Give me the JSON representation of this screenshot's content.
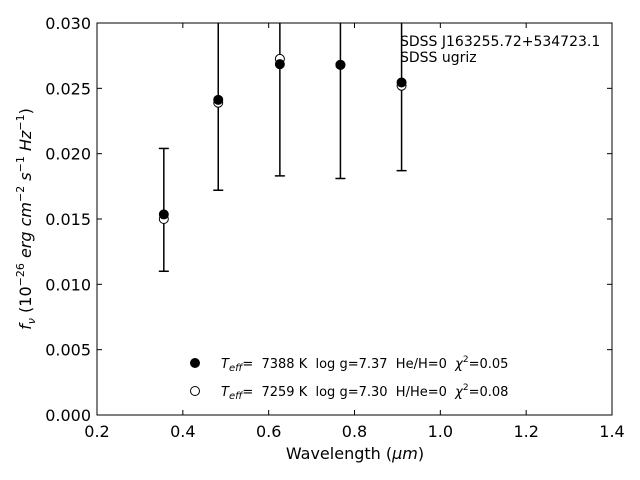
{
  "chart_data": {
    "type": "scatter",
    "annotation": [
      "SDSS J163255.72+534723.1",
      "SDSS ugriz"
    ],
    "xlabel": {
      "main": "Wavelength (",
      "unit": "μm",
      "close": ")"
    },
    "ylabel": {
      "prefix": "f",
      "sub": "ν",
      "rest": " (10",
      "exp": "−26",
      "units": " erg cm",
      "exp2": "−2",
      "units2": " s",
      "exp3": "−1",
      "units3": " Hz",
      "exp4": "−1",
      "close": ")"
    },
    "xlim": [
      0.2,
      1.4
    ],
    "ylim": [
      0.0,
      0.03
    ],
    "xticks": [
      "0.2",
      "0.4",
      "0.6",
      "0.8",
      "1.0",
      "1.2",
      "1.4"
    ],
    "yticks": [
      "0.000",
      "0.005",
      "0.010",
      "0.015",
      "0.020",
      "0.025",
      "0.030"
    ],
    "observed": {
      "x": [
        0.3557,
        0.4825,
        0.6261,
        0.7672,
        0.9097
      ],
      "y": [
        0.01535,
        0.02412,
        0.02685,
        0.0268,
        0.02545
      ],
      "yerr_low": [
        0.011,
        0.0172,
        0.0183,
        0.0181,
        0.0187
      ],
      "yerr_high": [
        0.0204,
        0.03,
        0.03,
        0.03,
        0.03
      ]
    },
    "series": [
      {
        "name": "T_eff= 7388 K log g=7.37 He/H=0 chi2=0.05",
        "marker": "filled-circle",
        "x": [
          0.3557,
          0.4825,
          0.6261,
          0.7672,
          0.9097
        ],
        "y": [
          0.01535,
          0.02412,
          0.02685,
          0.0268,
          0.02545
        ]
      },
      {
        "name": "T_eff= 7259 K log g=7.30 H/He=0 chi2=0.08",
        "marker": "open-circle",
        "x": [
          0.3557,
          0.4825,
          0.6261,
          0.7672,
          0.9097
        ],
        "y": [
          0.015,
          0.0239,
          0.02725,
          0.0268,
          0.0252
        ]
      }
    ],
    "legend": [
      {
        "marker": "filled-circle",
        "teff": "T",
        "teff_sub": "eff",
        "text": "=  7388 K  log g=7.37  He/H=0  ",
        "chi": "χ",
        "chi_sup": "2",
        "chi_val": "=0.05"
      },
      {
        "marker": "open-circle",
        "teff": "T",
        "teff_sub": "eff",
        "text": "=  7259 K  log g=7.30  H/He=0  ",
        "chi": "χ",
        "chi_sup": "2",
        "chi_val": "=0.08"
      }
    ],
    "legend_position": "lower-center",
    "grid": false
  }
}
